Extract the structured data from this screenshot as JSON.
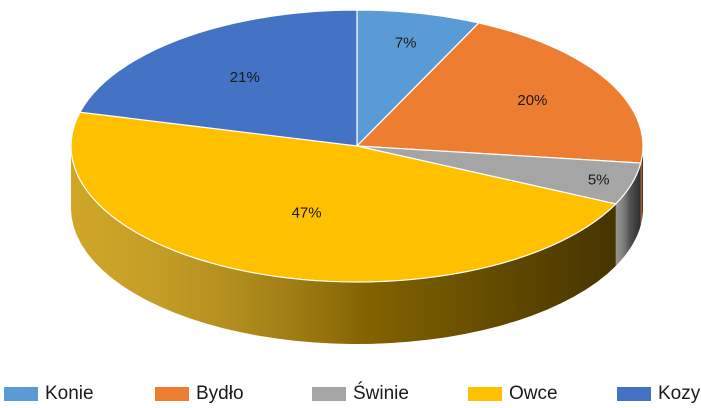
{
  "chart_data": {
    "type": "pie",
    "style": "3d",
    "categories": [
      "Konie",
      "Bydło",
      "Świnie",
      "Owce",
      "Kozy"
    ],
    "values": [
      7,
      20,
      5,
      47,
      21
    ],
    "labels": [
      "7%",
      "20%",
      "5%",
      "47%",
      "21%"
    ],
    "colors": [
      "#5B9BD5",
      "#ED7D31",
      "#A5A5A5",
      "#FFC000",
      "#4472C4"
    ],
    "legend_position": "bottom",
    "title": ""
  },
  "legend": [
    {
      "label": "Konie",
      "color": "#5B9BD5"
    },
    {
      "label": "Bydło",
      "color": "#ED7D31"
    },
    {
      "label": "Świnie",
      "color": "#A5A5A5"
    },
    {
      "label": "Owce",
      "color": "#FFC000"
    },
    {
      "label": "Kozy",
      "color": "#4472C4"
    }
  ]
}
